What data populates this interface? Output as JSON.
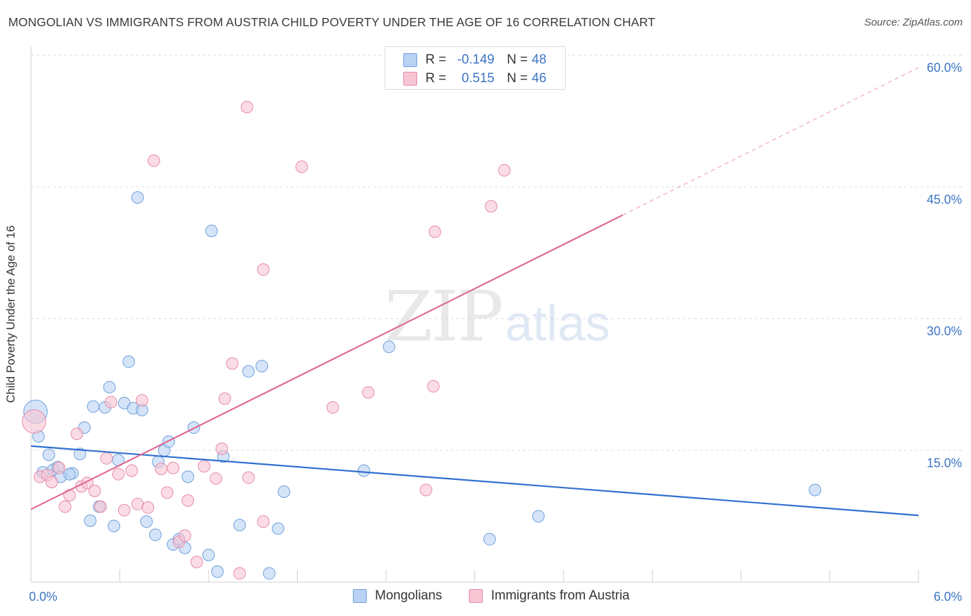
{
  "title": "MONGOLIAN VS IMMIGRANTS FROM AUSTRIA CHILD POVERTY UNDER THE AGE OF 16 CORRELATION CHART",
  "source": "Source: ZipAtlas.com",
  "watermark": {
    "zip": "ZIP",
    "atlas": "atlas"
  },
  "legend": {
    "rows": [
      {
        "r_label": "R =",
        "r_value": "-0.149",
        "n_label": "N =",
        "n_value": "48"
      },
      {
        "r_label": "R =",
        "r_value": "0.515",
        "n_label": "N =",
        "n_value": "46"
      }
    ]
  },
  "bottom_legend": [
    "Mongolians",
    "Immigrants from Austria"
  ],
  "colors": {
    "blue_fill": "#b9d2f3",
    "blue_stroke": "#6e9fdb",
    "blue_line": "#2f6fd0",
    "pink_fill": "#f8c5d4",
    "pink_stroke": "#e68aa7",
    "pink_line": "#e06a91",
    "axis_text": "#3b74c4",
    "grid": "#dddddd"
  },
  "chart_data": {
    "type": "scatter",
    "title": "MONGOLIAN VS IMMIGRANTS FROM AUSTRIA CHILD POVERTY UNDER THE AGE OF 16 CORRELATION CHART",
    "xlabel": "",
    "ylabel": "Child Poverty Under the Age of 16",
    "xlim": [
      0,
      6
    ],
    "ylim": [
      0,
      60
    ],
    "x_tick_labels": [
      "0.0%",
      "6.0%"
    ],
    "y_ticks": [
      15,
      30,
      45,
      60
    ],
    "y_tick_labels": [
      "15.0%",
      "30.0%",
      "45.0%",
      "60.0%"
    ],
    "grid": true,
    "series": [
      {
        "name": "Mongolians",
        "color": "#b9d2f3",
        "R": -0.149,
        "N": 48,
        "trend": {
          "x": [
            0,
            6
          ],
          "y": [
            15.5,
            7.6
          ],
          "dashed_after": null
        },
        "points": [
          {
            "x": 0.03,
            "y": 19.4,
            "big": true
          },
          {
            "x": 0.05,
            "y": 16.6
          },
          {
            "x": 0.12,
            "y": 14.5
          },
          {
            "x": 0.08,
            "y": 12.5
          },
          {
            "x": 0.15,
            "y": 12.8
          },
          {
            "x": 0.18,
            "y": 13.1
          },
          {
            "x": 0.2,
            "y": 12.0
          },
          {
            "x": 0.28,
            "y": 12.4
          },
          {
            "x": 0.33,
            "y": 14.6
          },
          {
            "x": 0.36,
            "y": 17.6
          },
          {
            "x": 0.4,
            "y": 7.0
          },
          {
            "x": 0.42,
            "y": 20.0
          },
          {
            "x": 0.46,
            "y": 8.6
          },
          {
            "x": 0.5,
            "y": 19.9
          },
          {
            "x": 0.53,
            "y": 22.2
          },
          {
            "x": 0.56,
            "y": 6.4
          },
          {
            "x": 0.59,
            "y": 13.9
          },
          {
            "x": 0.63,
            "y": 20.4
          },
          {
            "x": 0.66,
            "y": 25.1
          },
          {
            "x": 0.69,
            "y": 19.8
          },
          {
            "x": 0.72,
            "y": 43.8
          },
          {
            "x": 0.75,
            "y": 19.6
          },
          {
            "x": 0.78,
            "y": 6.9
          },
          {
            "x": 0.84,
            "y": 5.4
          },
          {
            "x": 0.86,
            "y": 13.7
          },
          {
            "x": 0.9,
            "y": 15.0
          },
          {
            "x": 0.93,
            "y": 16.0
          },
          {
            "x": 0.96,
            "y": 4.3
          },
          {
            "x": 1.0,
            "y": 4.9
          },
          {
            "x": 1.04,
            "y": 3.9
          },
          {
            "x": 1.06,
            "y": 12.0
          },
          {
            "x": 1.1,
            "y": 17.6
          },
          {
            "x": 1.2,
            "y": 3.1
          },
          {
            "x": 1.22,
            "y": 40.0
          },
          {
            "x": 1.26,
            "y": 1.2
          },
          {
            "x": 1.3,
            "y": 14.3
          },
          {
            "x": 1.41,
            "y": 6.5
          },
          {
            "x": 1.47,
            "y": 24.0
          },
          {
            "x": 1.56,
            "y": 24.6
          },
          {
            "x": 1.61,
            "y": 1.0
          },
          {
            "x": 1.67,
            "y": 6.1
          },
          {
            "x": 1.71,
            "y": 10.3
          },
          {
            "x": 2.25,
            "y": 12.7
          },
          {
            "x": 2.42,
            "y": 26.8
          },
          {
            "x": 3.1,
            "y": 4.9
          },
          {
            "x": 3.43,
            "y": 7.5
          },
          {
            "x": 5.3,
            "y": 10.5
          },
          {
            "x": 0.26,
            "y": 12.3
          }
        ]
      },
      {
        "name": "Immigrants from Austria",
        "color": "#f8c5d4",
        "R": 0.515,
        "N": 46,
        "trend": {
          "x": [
            0,
            4.0
          ],
          "y": [
            8.3,
            41.8
          ],
          "dashed_after": [
            4.0,
            6.0,
            41.8,
            58.6
          ]
        },
        "points": [
          {
            "x": 0.02,
            "y": 18.3,
            "big": true
          },
          {
            "x": 0.06,
            "y": 12.0
          },
          {
            "x": 0.11,
            "y": 12.2
          },
          {
            "x": 0.14,
            "y": 11.4
          },
          {
            "x": 0.19,
            "y": 13.0
          },
          {
            "x": 0.23,
            "y": 8.6
          },
          {
            "x": 0.26,
            "y": 9.9
          },
          {
            "x": 0.31,
            "y": 16.9
          },
          {
            "x": 0.34,
            "y": 10.9
          },
          {
            "x": 0.38,
            "y": 11.3
          },
          {
            "x": 0.43,
            "y": 10.4
          },
          {
            "x": 0.47,
            "y": 8.6
          },
          {
            "x": 0.51,
            "y": 14.1
          },
          {
            "x": 0.54,
            "y": 20.5
          },
          {
            "x": 0.59,
            "y": 12.3
          },
          {
            "x": 0.63,
            "y": 8.2
          },
          {
            "x": 0.68,
            "y": 12.7
          },
          {
            "x": 0.72,
            "y": 8.9
          },
          {
            "x": 0.75,
            "y": 20.7
          },
          {
            "x": 0.79,
            "y": 8.5
          },
          {
            "x": 0.83,
            "y": 48.0
          },
          {
            "x": 0.88,
            "y": 12.9
          },
          {
            "x": 0.92,
            "y": 10.2
          },
          {
            "x": 0.96,
            "y": 13.0
          },
          {
            "x": 1.0,
            "y": 4.6
          },
          {
            "x": 1.04,
            "y": 5.3
          },
          {
            "x": 1.06,
            "y": 9.3
          },
          {
            "x": 1.12,
            "y": 2.3
          },
          {
            "x": 1.17,
            "y": 13.2
          },
          {
            "x": 1.25,
            "y": 11.8
          },
          {
            "x": 1.29,
            "y": 15.2
          },
          {
            "x": 1.31,
            "y": 20.9
          },
          {
            "x": 1.36,
            "y": 24.9
          },
          {
            "x": 1.41,
            "y": 1.0
          },
          {
            "x": 1.46,
            "y": 54.1
          },
          {
            "x": 1.47,
            "y": 11.9
          },
          {
            "x": 1.57,
            "y": 35.6
          },
          {
            "x": 1.57,
            "y": 6.9
          },
          {
            "x": 1.83,
            "y": 47.3
          },
          {
            "x": 2.04,
            "y": 19.9
          },
          {
            "x": 2.28,
            "y": 21.6
          },
          {
            "x": 2.67,
            "y": 10.5
          },
          {
            "x": 2.72,
            "y": 22.3
          },
          {
            "x": 2.73,
            "y": 39.9
          },
          {
            "x": 3.11,
            "y": 42.8
          },
          {
            "x": 3.2,
            "y": 46.9
          }
        ]
      }
    ]
  }
}
